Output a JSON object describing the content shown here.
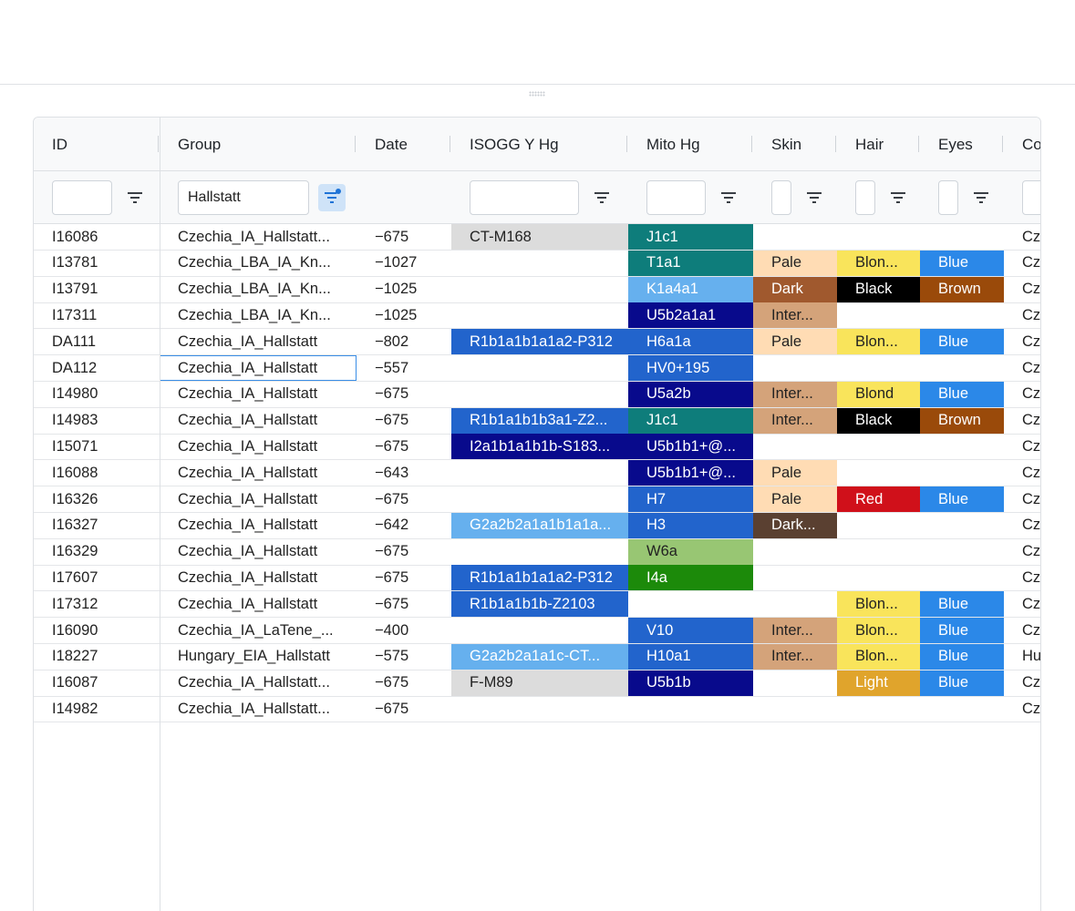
{
  "columns": [
    {
      "key": "id",
      "label": "ID"
    },
    {
      "key": "group",
      "label": "Group"
    },
    {
      "key": "date",
      "label": "Date"
    },
    {
      "key": "ydna",
      "label": "ISOGG Y Hg"
    },
    {
      "key": "mito",
      "label": "Mito Hg"
    },
    {
      "key": "skin",
      "label": "Skin"
    },
    {
      "key": "hair",
      "label": "Hair"
    },
    {
      "key": "eyes",
      "label": "Eyes"
    },
    {
      "key": "country",
      "label": "Co"
    }
  ],
  "filters": {
    "group_value": "Hallstatt"
  },
  "colors": {
    "grey": "#dcdcdc",
    "teal": "#0e7d7b",
    "lightblue": "#66b0ee",
    "navy": "#080a8c",
    "blue": "#2264cc",
    "eyeblue": "#2b88e8",
    "green": "#1c8a0a",
    "lightgreen": "#98c673",
    "pale": "#ffdcb4",
    "inter": "#d4a37a",
    "darkskin": "#a0592e",
    "darker": "#5a4031",
    "blond": "#f9e45b",
    "light": "#e0a42c",
    "red": "#d0101a",
    "black": "#000000",
    "brown": "#9a4a0a"
  },
  "rows": [
    {
      "id": "I16086",
      "group": "Czechia_IA_Hallstatt...",
      "date": "−675",
      "ydna": "CT-M168",
      "ydna_c": "grey",
      "mito": "J1c1",
      "mito_c": "teal",
      "skin": "",
      "skin_c": "",
      "hair": "",
      "hair_c": "",
      "eyes": "",
      "eyes_c": "",
      "country": "Cze"
    },
    {
      "id": "I13781",
      "group": "Czechia_LBA_IA_Kn...",
      "date": "−1027",
      "ydna": "",
      "ydna_c": "",
      "mito": "T1a1",
      "mito_c": "teal",
      "skin": "Pale",
      "skin_c": "pale",
      "hair": "Blon...",
      "hair_c": "blond",
      "eyes": "Blue",
      "eyes_c": "eyeblue",
      "country": "Cze"
    },
    {
      "id": "I13791",
      "group": "Czechia_LBA_IA_Kn...",
      "date": "−1025",
      "ydna": "",
      "ydna_c": "",
      "mito": "K1a4a1",
      "mito_c": "lightblue",
      "skin": "Dark",
      "skin_c": "darkskin",
      "hair": "Black",
      "hair_c": "black",
      "eyes": "Brown",
      "eyes_c": "brown",
      "country": "Cze"
    },
    {
      "id": "I17311",
      "group": "Czechia_LBA_IA_Kn...",
      "date": "−1025",
      "ydna": "",
      "ydna_c": "",
      "mito": "U5b2a1a1",
      "mito_c": "navy",
      "skin": "Inter...",
      "skin_c": "inter",
      "hair": "",
      "hair_c": "",
      "eyes": "",
      "eyes_c": "",
      "country": "Cze"
    },
    {
      "id": "DA111",
      "group": "Czechia_IA_Hallstatt",
      "date": "−802",
      "ydna": "R1b1a1b1a1a2-P312",
      "ydna_c": "blue",
      "mito": "H6a1a",
      "mito_c": "blue",
      "skin": "Pale",
      "skin_c": "pale",
      "hair": "Blon...",
      "hair_c": "blond",
      "eyes": "Blue",
      "eyes_c": "eyeblue",
      "country": "Cze"
    },
    {
      "id": "DA112",
      "group": "Czechia_IA_Hallstatt",
      "date": "−557",
      "ydna": "",
      "ydna_c": "",
      "mito": "HV0+195",
      "mito_c": "blue",
      "skin": "",
      "skin_c": "",
      "hair": "",
      "hair_c": "",
      "eyes": "",
      "eyes_c": "",
      "country": "Cze",
      "focus": "group"
    },
    {
      "id": "I14980",
      "group": "Czechia_IA_Hallstatt",
      "date": "−675",
      "ydna": "",
      "ydna_c": "",
      "mito": "U5a2b",
      "mito_c": "navy",
      "skin": "Inter...",
      "skin_c": "inter",
      "hair": "Blond",
      "hair_c": "blond",
      "eyes": "Blue",
      "eyes_c": "eyeblue",
      "country": "Cze"
    },
    {
      "id": "I14983",
      "group": "Czechia_IA_Hallstatt",
      "date": "−675",
      "ydna": "R1b1a1b1b3a1-Z2...",
      "ydna_c": "blue",
      "mito": "J1c1",
      "mito_c": "teal",
      "skin": "Inter...",
      "skin_c": "inter",
      "hair": "Black",
      "hair_c": "black",
      "eyes": "Brown",
      "eyes_c": "brown",
      "country": "Cze"
    },
    {
      "id": "I15071",
      "group": "Czechia_IA_Hallstatt",
      "date": "−675",
      "ydna": "I2a1b1a1b1b-S183...",
      "ydna_c": "navy",
      "mito": "U5b1b1+@...",
      "mito_c": "navy",
      "skin": "",
      "skin_c": "",
      "hair": "",
      "hair_c": "",
      "eyes": "",
      "eyes_c": "",
      "country": "Cze"
    },
    {
      "id": "I16088",
      "group": "Czechia_IA_Hallstatt",
      "date": "−643",
      "ydna": "",
      "ydna_c": "",
      "mito": "U5b1b1+@...",
      "mito_c": "navy",
      "skin": "Pale",
      "skin_c": "pale",
      "hair": "",
      "hair_c": "",
      "eyes": "",
      "eyes_c": "",
      "country": "Cze"
    },
    {
      "id": "I16326",
      "group": "Czechia_IA_Hallstatt",
      "date": "−675",
      "ydna": "",
      "ydna_c": "",
      "mito": "H7",
      "mito_c": "blue",
      "skin": "Pale",
      "skin_c": "pale",
      "hair": "Red",
      "hair_c": "red",
      "eyes": "Blue",
      "eyes_c": "eyeblue",
      "country": "Cze"
    },
    {
      "id": "I16327",
      "group": "Czechia_IA_Hallstatt",
      "date": "−642",
      "ydna": "G2a2b2a1a1b1a1a...",
      "ydna_c": "lightblue",
      "mito": "H3",
      "mito_c": "blue",
      "skin": "Dark...",
      "skin_c": "darker",
      "hair": "",
      "hair_c": "",
      "eyes": "",
      "eyes_c": "",
      "country": "Cze"
    },
    {
      "id": "I16329",
      "group": "Czechia_IA_Hallstatt",
      "date": "−675",
      "ydna": "",
      "ydna_c": "",
      "mito": "W6a",
      "mito_c": "lightgreen",
      "skin": "",
      "skin_c": "",
      "hair": "",
      "hair_c": "",
      "eyes": "",
      "eyes_c": "",
      "country": "Cze"
    },
    {
      "id": "I17607",
      "group": "Czechia_IA_Hallstatt",
      "date": "−675",
      "ydna": "R1b1a1b1a1a2-P312",
      "ydna_c": "blue",
      "mito": "I4a",
      "mito_c": "green",
      "skin": "",
      "skin_c": "",
      "hair": "",
      "hair_c": "",
      "eyes": "",
      "eyes_c": "",
      "country": "Cze"
    },
    {
      "id": "I17312",
      "group": "Czechia_IA_Hallstatt",
      "date": "−675",
      "ydna": "R1b1a1b1b-Z2103",
      "ydna_c": "blue",
      "mito": "",
      "mito_c": "",
      "skin": "",
      "skin_c": "",
      "hair": "Blon...",
      "hair_c": "blond",
      "eyes": "Blue",
      "eyes_c": "eyeblue",
      "country": "Cze"
    },
    {
      "id": "I16090",
      "group": "Czechia_IA_LaTene_...",
      "date": "−400",
      "ydna": "",
      "ydna_c": "",
      "mito": "V10",
      "mito_c": "blue",
      "skin": "Inter...",
      "skin_c": "inter",
      "hair": "Blon...",
      "hair_c": "blond",
      "eyes": "Blue",
      "eyes_c": "eyeblue",
      "country": "Cze"
    },
    {
      "id": "I18227",
      "group": "Hungary_EIA_Hallstatt",
      "date": "−575",
      "ydna": "G2a2b2a1a1c-CT...",
      "ydna_c": "lightblue",
      "mito": "H10a1",
      "mito_c": "blue",
      "skin": "Inter...",
      "skin_c": "inter",
      "hair": "Blon...",
      "hair_c": "blond",
      "eyes": "Blue",
      "eyes_c": "eyeblue",
      "country": "Hu"
    },
    {
      "id": "I16087",
      "group": "Czechia_IA_Hallstatt...",
      "date": "−675",
      "ydna": "F-M89",
      "ydna_c": "grey",
      "mito": "U5b1b",
      "mito_c": "navy",
      "skin": "",
      "skin_c": "",
      "hair": "Light",
      "hair_c": "light",
      "eyes": "Blue",
      "eyes_c": "eyeblue",
      "country": "Cze"
    },
    {
      "id": "I14982",
      "group": "Czechia_IA_Hallstatt...",
      "date": "−675",
      "ydna": "",
      "ydna_c": "",
      "mito": "",
      "mito_c": "",
      "skin": "",
      "skin_c": "",
      "hair": "",
      "hair_c": "",
      "eyes": "",
      "eyes_c": "",
      "country": "Cze"
    }
  ]
}
